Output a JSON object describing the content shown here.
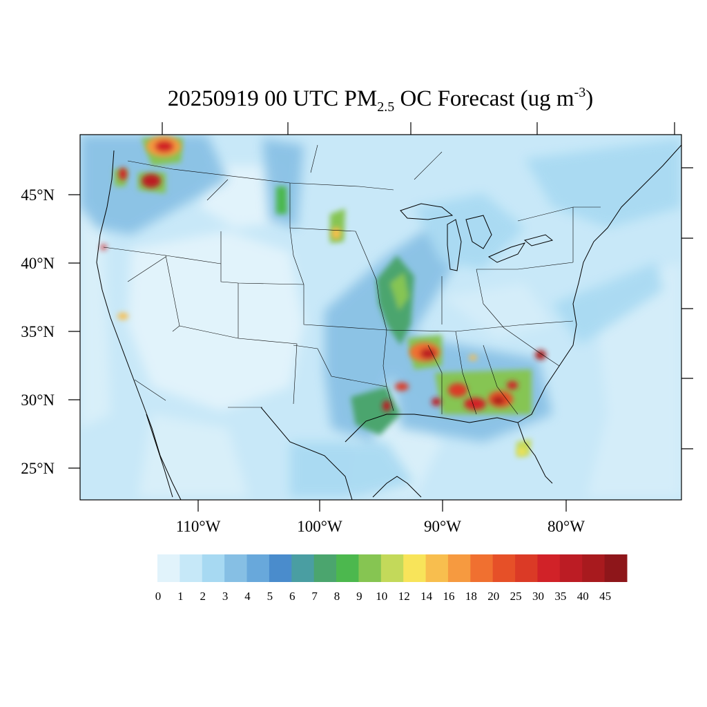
{
  "title": {
    "prefix": "20250919 00 UTC PM",
    "subscript": "2.5",
    "middle": " OC Forecast (ug m",
    "superscript": "-3",
    "suffix": ")"
  },
  "axes": {
    "lat_labels": [
      "45°N",
      "40°N",
      "35°N",
      "30°N",
      "25°N"
    ],
    "lon_labels": [
      "110°W",
      "100°W",
      "90°W",
      "80°W"
    ]
  },
  "colorbar": {
    "labels": [
      "0",
      "1",
      "2",
      "3",
      "4",
      "5",
      "6",
      "7",
      "8",
      "9",
      "10",
      "12",
      "14",
      "16",
      "18",
      "20",
      "25",
      "30",
      "35",
      "40",
      "45"
    ],
    "colors": [
      "#e1f3fb",
      "#c6e8f8",
      "#a7d9f2",
      "#86bfe4",
      "#68a8db",
      "#4a8ccc",
      "#4a9ea2",
      "#4ba56e",
      "#4cb84e",
      "#86c552",
      "#c3d95a",
      "#f8e45a",
      "#f8be4e",
      "#f69a40",
      "#f07030",
      "#e65028",
      "#db3a26",
      "#d12228",
      "#bc1c24",
      "#a81a1e",
      "#8e161a"
    ]
  },
  "map": {
    "features": [
      "us-state-boundaries",
      "canada-province-boundaries",
      "mexico-state-boundaries",
      "coastlines",
      "great-lakes"
    ]
  }
}
